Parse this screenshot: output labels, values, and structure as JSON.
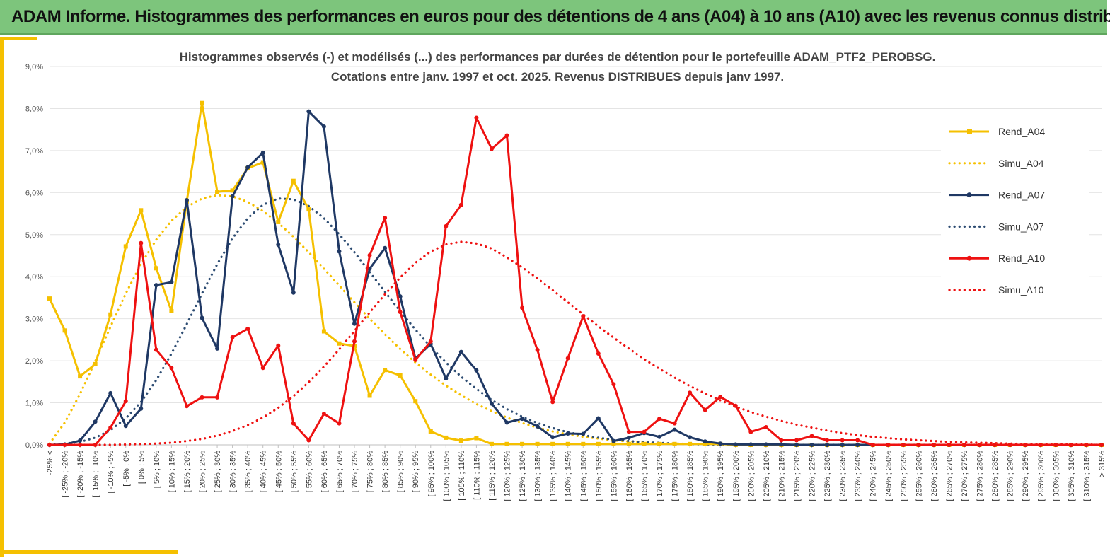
{
  "banner": {
    "title": "ADAM Informe. Histogrammes des performances en euros pour des détentions de 4 ans (A04) à 10 ans (A10) avec les revenus connus distribués"
  },
  "colors": {
    "banner_bg": "#7dc57c",
    "accent": "#f5c000",
    "a04": "#f5c000",
    "a07": "#1f3864",
    "a10": "#ee1111",
    "sim_a07": "#2e4d73"
  },
  "chart_data": {
    "type": "line",
    "title": [
      "Histogrammes observés (-) et modélisés (...) des performances par durées de détention pour le portefeuille ADAM_PTF2_PEROBSG.",
      "Cotations entre janv. 1997 et oct. 2025. Revenus DISTRIBUES depuis janv 1997."
    ],
    "ylim": [
      0,
      9
    ],
    "yticks": [
      "0,0%",
      "1,0%",
      "2,0%",
      "3,0%",
      "4,0%",
      "5,0%",
      "6,0%",
      "7,0%",
      "8,0%",
      "9,0%"
    ],
    "legend_position": "right",
    "categories": [
      "-25% <",
      "[ -25% ; -20%",
      "[ -20% ; -15%",
      "[ -15% ; -10%",
      "[ -10% ; -5%",
      "[ -5% ; 0%",
      "[ 0% ; 5%",
      "[ 5% ; 10%",
      "[ 10% ; 15%",
      "[ 15% ; 20%",
      "[ 20% ; 25%",
      "[ 25% ; 30%",
      "[ 30% ; 35%",
      "[ 35% ; 40%",
      "[ 40% ; 45%",
      "[ 45% ; 50%",
      "[ 50% ; 55%",
      "[ 55% ; 60%",
      "[ 60% ; 65%",
      "[ 65% ; 70%",
      "[ 70% ; 75%",
      "[ 75% ; 80%",
      "[ 80% ; 85%",
      "[ 85% ; 90%",
      "[ 90% ; 95%",
      "[ 95% ; 100%",
      "[ 100% ; 105%",
      "[ 105% ; 110%",
      "[ 110% ; 115%",
      "[ 115% ; 120%",
      "[ 120% ; 125%",
      "[ 125% ; 130%",
      "[ 130% ; 135%",
      "[ 135% ; 140%",
      "[ 140% ; 145%",
      "[ 145% ; 150%",
      "[ 150% ; 155%",
      "[ 155% ; 160%",
      "[ 160% ; 165%",
      "[ 165% ; 170%",
      "[ 170% ; 175%",
      "[ 175% ; 180%",
      "[ 180% ; 185%",
      "[ 185% ; 190%",
      "[ 190% ; 195%",
      "[ 195% ; 200%",
      "[ 200% ; 205%",
      "[ 205% ; 210%",
      "[ 210% ; 215%",
      "[ 215% ; 220%",
      "[ 220% ; 225%",
      "[ 225% ; 230%",
      "[ 230% ; 235%",
      "[ 235% ; 240%",
      "[ 240% ; 245%",
      "[ 245% ; 250%",
      "[ 250% ; 255%",
      "[ 255% ; 260%",
      "[ 260% ; 265%",
      "[ 265% ; 270%",
      "[ 270% ; 275%",
      "[ 275% ; 280%",
      "[ 280% ; 285%",
      "[ 285% ; 290%",
      "[ 290% ; 295%",
      "[ 295% ; 300%",
      "[ 300% ; 305%",
      "[ 305% ; 310%",
      "[ 310% ; 315%",
      "> 315%"
    ],
    "series": [
      {
        "name": "Rend_A04",
        "style": "solid",
        "marker": "square",
        "color": "#f5c000",
        "values": [
          3.48,
          2.72,
          1.63,
          1.92,
          3.1,
          4.72,
          5.58,
          4.2,
          3.18,
          5.79,
          8.13,
          6.02,
          6.05,
          6.58,
          6.72,
          5.3,
          6.28,
          5.6,
          2.7,
          2.41,
          2.35,
          1.17,
          1.78,
          1.65,
          1.04,
          0.32,
          0.17,
          0.1,
          0.16,
          0.02,
          0.02,
          0.02,
          0.02,
          0.02,
          0.02,
          0.02,
          0.02,
          0.02,
          0.02,
          0.02,
          0.02,
          0.02,
          0.02,
          0.02,
          0.02,
          0,
          0,
          0,
          0,
          0,
          0,
          0,
          0,
          0,
          0,
          0,
          0,
          0,
          0,
          0,
          0,
          0,
          0,
          0,
          0,
          0,
          0,
          0,
          0,
          0
        ]
      },
      {
        "name": "Simu_A04",
        "style": "dotted",
        "color": "#f5c000",
        "values": [
          0.03,
          0.53,
          1.21,
          1.99,
          2.81,
          3.6,
          4.3,
          4.88,
          5.33,
          5.66,
          5.86,
          5.94,
          5.91,
          5.78,
          5.56,
          5.28,
          4.95,
          4.58,
          4.19,
          3.79,
          3.39,
          3.0,
          2.63,
          2.28,
          1.96,
          1.67,
          1.41,
          1.18,
          0.97,
          0.8,
          0.65,
          0.52,
          0.41,
          0.32,
          0.25,
          0.19,
          0.15,
          0.11,
          0.08,
          0.06,
          0.04,
          0.03,
          0.02,
          0.02,
          0.01,
          0.01,
          0,
          0,
          0,
          0,
          0,
          0,
          0,
          0,
          0,
          0,
          0,
          0,
          0,
          0,
          0,
          0,
          0,
          0,
          0,
          0,
          0,
          0,
          0,
          0
        ]
      },
      {
        "name": "Rend_A07",
        "style": "solid",
        "marker": "circle",
        "color": "#1f3864",
        "values": [
          0,
          0.01,
          0.1,
          0.55,
          1.23,
          0.45,
          0.86,
          3.8,
          3.87,
          5.82,
          3.02,
          2.29,
          5.91,
          6.6,
          6.95,
          4.76,
          3.62,
          7.93,
          7.57,
          4.6,
          2.88,
          4.19,
          4.68,
          3.53,
          2.05,
          2.4,
          1.58,
          2.21,
          1.77,
          0.98,
          0.53,
          0.62,
          0.44,
          0.18,
          0.27,
          0.26,
          0.63,
          0.09,
          0.17,
          0.28,
          0.19,
          0.36,
          0.18,
          0.08,
          0.03,
          0.01,
          0.01,
          0.01,
          0.01,
          0,
          0,
          0,
          0,
          0,
          0,
          0,
          0,
          0,
          0,
          0,
          0,
          0,
          0,
          0,
          0,
          0,
          0,
          0,
          0,
          0
        ]
      },
      {
        "name": "Simu_A07",
        "style": "dotted",
        "color": "#2e4d73",
        "values": [
          0.0,
          0.03,
          0.07,
          0.17,
          0.35,
          0.63,
          1.02,
          1.54,
          2.17,
          2.87,
          3.6,
          4.3,
          4.91,
          5.39,
          5.71,
          5.86,
          5.84,
          5.68,
          5.39,
          5.01,
          4.58,
          4.11,
          3.64,
          3.18,
          2.74,
          2.33,
          1.96,
          1.62,
          1.33,
          1.07,
          0.85,
          0.67,
          0.52,
          0.4,
          0.3,
          0.23,
          0.17,
          0.12,
          0.09,
          0.06,
          0.05,
          0.03,
          0.02,
          0.01,
          0.01,
          0,
          0,
          0,
          0,
          0,
          0,
          0,
          0,
          0,
          0,
          0,
          0,
          0,
          0,
          0,
          0,
          0,
          0,
          0,
          0,
          0,
          0,
          0,
          0,
          0
        ]
      },
      {
        "name": "Rend_A10",
        "style": "solid",
        "marker": "circle",
        "color": "#ee1111",
        "values": [
          0,
          0,
          0,
          0,
          0.41,
          1.04,
          4.8,
          2.26,
          1.83,
          0.92,
          1.13,
          1.13,
          2.56,
          2.76,
          1.83,
          2.36,
          0.51,
          0.11,
          0.74,
          0.51,
          2.46,
          4.51,
          5.4,
          3.16,
          2.02,
          2.46,
          5.2,
          5.71,
          7.78,
          7.04,
          7.36,
          3.26,
          2.26,
          1.02,
          2.06,
          3.06,
          2.17,
          1.44,
          0.31,
          0.31,
          0.62,
          0.51,
          1.24,
          0.83,
          1.14,
          0.93,
          0.31,
          0.42,
          0.11,
          0.11,
          0.21,
          0.11,
          0.11,
          0.11,
          0,
          0,
          0,
          0,
          0,
          0,
          0,
          0,
          0,
          0,
          0,
          0,
          0,
          0,
          0,
          0
        ]
      },
      {
        "name": "Simu_A10",
        "style": "dotted",
        "color": "#ee1111",
        "values": [
          0,
          0,
          0,
          0,
          0,
          0.01,
          0.02,
          0.03,
          0.05,
          0.09,
          0.14,
          0.22,
          0.33,
          0.47,
          0.65,
          0.88,
          1.16,
          1.49,
          1.86,
          2.27,
          2.71,
          3.15,
          3.58,
          3.98,
          4.33,
          4.6,
          4.77,
          4.83,
          4.79,
          4.67,
          4.46,
          4.22,
          3.96,
          3.68,
          3.39,
          3.1,
          2.82,
          2.55,
          2.29,
          2.04,
          1.81,
          1.6,
          1.4,
          1.22,
          1.06,
          0.91,
          0.78,
          0.67,
          0.57,
          0.48,
          0.41,
          0.34,
          0.28,
          0.23,
          0.19,
          0.16,
          0.13,
          0.11,
          0.09,
          0.07,
          0.06,
          0.05,
          0.04,
          0.03,
          0.02,
          0.02,
          0.01,
          0.01,
          0.01,
          0
        ]
      }
    ]
  }
}
